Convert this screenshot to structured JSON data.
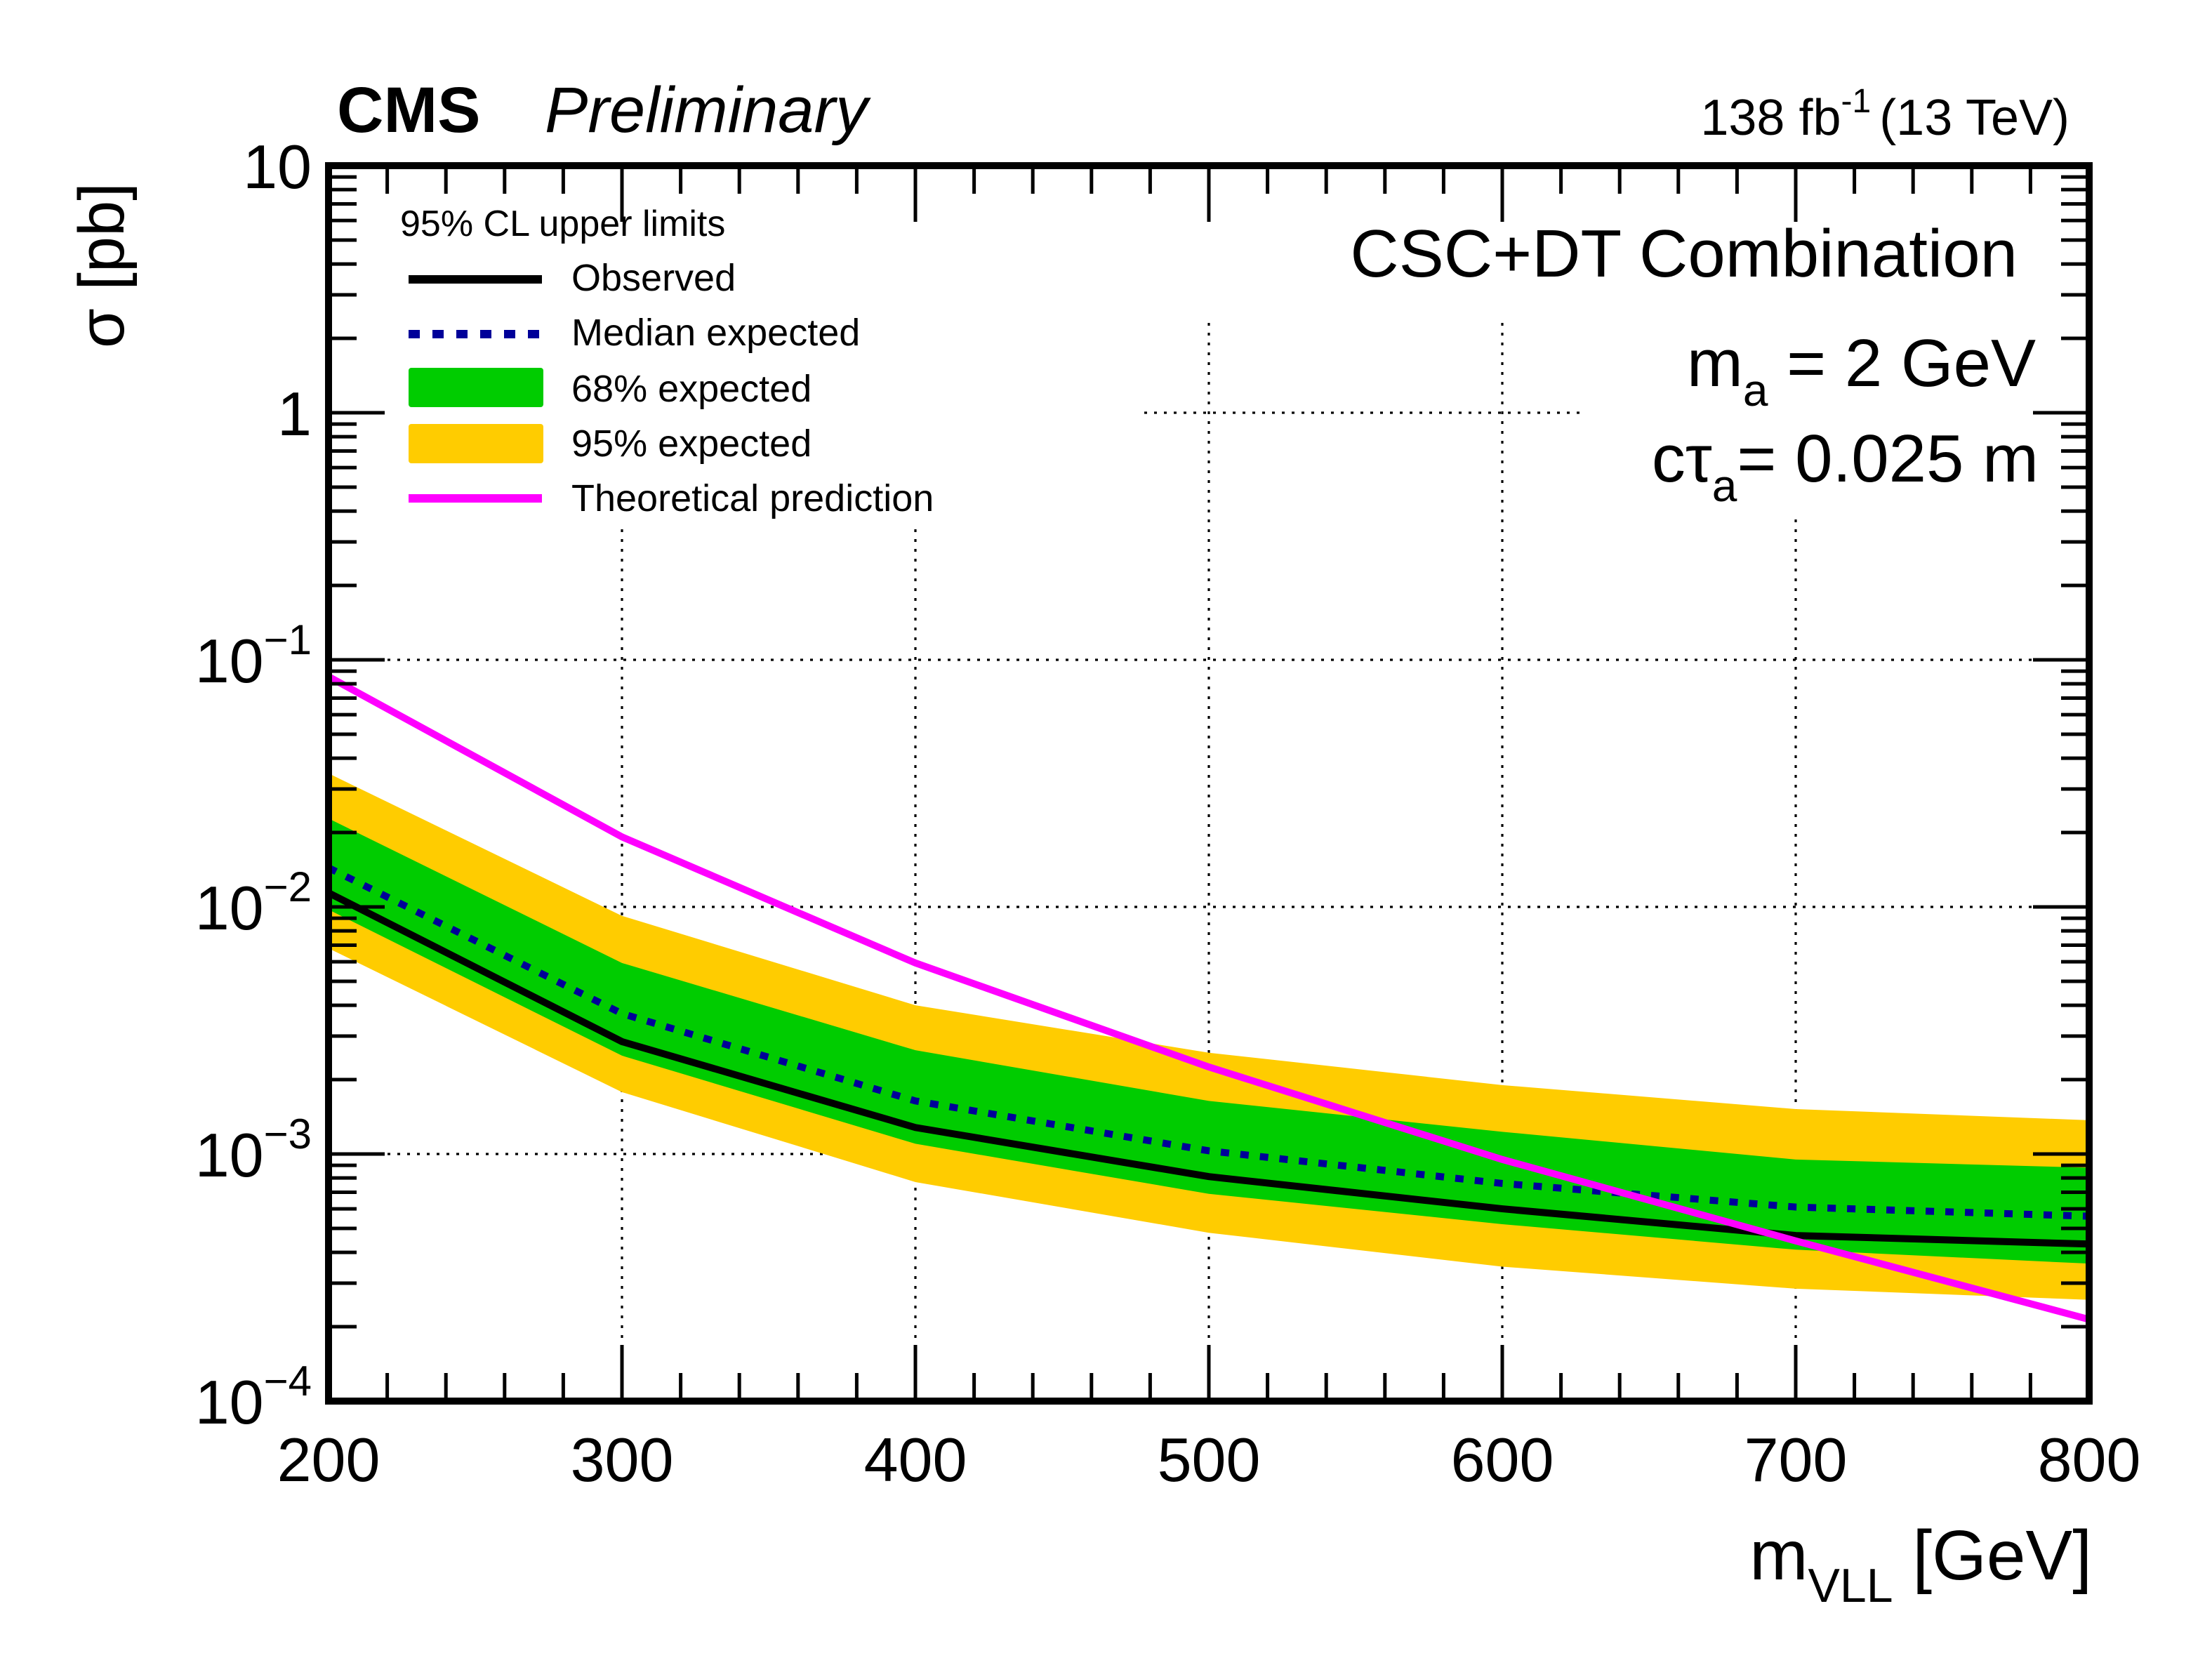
{
  "header": {
    "cms": "CMS",
    "preliminary": "Preliminary",
    "lumi_value": "138 fb",
    "lumi_exp": "-1",
    "energy": "(13 TeV)"
  },
  "annotations": {
    "combination": "CSC+DT Combination",
    "mass_label": "m",
    "mass_sub": "a",
    "mass_value": " = 2 GeV",
    "ctau_label": "cτ",
    "ctau_sub": "a",
    "ctau_value": "= 0.025 m"
  },
  "legend": {
    "title": "95% CL upper limits",
    "items": [
      "Observed",
      "Median expected",
      "68% expected",
      "95% expected",
      "Theoretical prediction"
    ]
  },
  "chart_data": {
    "type": "line",
    "xlabel_main": "m",
    "xlabel_sub": "VLL",
    "xlabel_unit": " [GeV]",
    "ylabel": "σ [pb]",
    "xlim": [
      200,
      800
    ],
    "ylim": [
      0.0001,
      10
    ],
    "yscale": "log",
    "grid": true,
    "legend_placement": "top-left",
    "x_ticks": [
      "200",
      "300",
      "400",
      "500",
      "600",
      "700",
      "800"
    ],
    "y_ticks": [
      {
        "base": "10",
        "exp": "−4"
      },
      {
        "base": "10",
        "exp": "−3"
      },
      {
        "base": "10",
        "exp": "−2"
      },
      {
        "base": "10",
        "exp": "−1"
      },
      {
        "base": "1",
        "exp": ""
      },
      {
        "base": "10",
        "exp": ""
      }
    ],
    "x": [
      200,
      300,
      400,
      500,
      600,
      700,
      800
    ],
    "observed": [
      0.0114,
      0.00285,
      0.00128,
      0.00081,
      0.0006,
      0.000468,
      0.000432
    ],
    "expected": [
      0.0144,
      0.0037,
      0.00164,
      0.00103,
      0.00076,
      0.00061,
      0.00056
    ],
    "band68_low": [
      0.00975,
      0.0025,
      0.0011,
      0.00069,
      0.00052,
      0.00041,
      0.00036
    ],
    "band68_high": [
      0.0228,
      0.00593,
      0.00263,
      0.00164,
      0.00123,
      0.00095,
      0.00088
    ],
    "band95_low": [
      0.0068,
      0.00178,
      0.00077,
      0.00048,
      0.00035,
      0.000285,
      0.000257
    ],
    "band95_high": [
      0.0347,
      0.0092,
      0.004,
      0.00257,
      0.0019,
      0.00152,
      0.00137
    ],
    "theory": [
      0.0855,
      0.0192,
      0.00593,
      0.00225,
      0.00095,
      0.000445,
      0.000214
    ],
    "colors": {
      "observed": "#000000",
      "expected": "#000099",
      "band68": "#00cc00",
      "band95": "#ffcc00",
      "theory": "#ff00ff"
    }
  }
}
